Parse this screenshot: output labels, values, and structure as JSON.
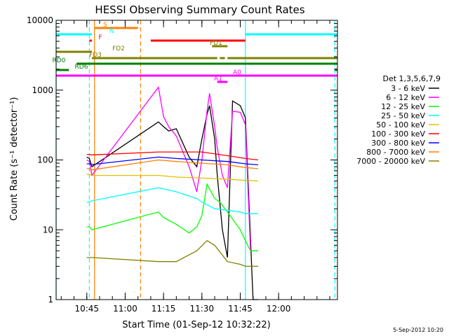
{
  "chart_data": {
    "type": "line",
    "title": "HESSI Observing Summary Count Rates",
    "xlabel": "Start Time (01-Sep-12 10:32:22)",
    "ylabel": "Count Rate (s⁻¹ detector⁻¹)",
    "y_scale": "log",
    "ylim": [
      1,
      10000
    ],
    "xlim_minutes": [
      "10:33",
      "12:23"
    ],
    "x_ticks": [
      "10:45",
      "11:00",
      "11:15",
      "11:30",
      "11:45",
      "12:00"
    ],
    "y_ticks": [
      "1",
      "10",
      "100",
      "1000",
      "10000"
    ],
    "legend_title": "Det 1,3,5,6,7,9",
    "legend_position": "right",
    "series": [
      {
        "name": "3 - 6 keV",
        "color": "#000000",
        "x": [
          "10:45",
          "10:46",
          "10:47",
          "11:13",
          "11:15",
          "11:17",
          "11:20",
          "11:25",
          "11:28",
          "11:30",
          "11:32",
          "11:33",
          "11:35",
          "11:36",
          "11:38",
          "11:40",
          "11:42",
          "11:45",
          "11:47",
          "11:50",
          "11:52"
        ],
        "y": [
          110,
          105,
          80,
          350,
          300,
          260,
          280,
          110,
          80,
          200,
          450,
          600,
          200,
          60,
          10,
          4,
          700,
          600,
          400,
          1,
          1
        ]
      },
      {
        "name": "6 - 12 keV",
        "color": "#ff00ff",
        "x": [
          "10:45",
          "10:46",
          "10:47",
          "11:13",
          "11:15",
          "11:17",
          "11:20",
          "11:25",
          "11:28",
          "11:30",
          "11:32",
          "11:33",
          "11:35",
          "11:36",
          "11:38",
          "11:40",
          "11:42",
          "11:45",
          "11:47",
          "11:49",
          "11:52"
        ],
        "y": [
          100,
          95,
          60,
          1100,
          420,
          300,
          220,
          80,
          35,
          100,
          500,
          900,
          300,
          150,
          60,
          40,
          500,
          480,
          320,
          5,
          5
        ]
      },
      {
        "name": "12 - 25 keV",
        "color": "#00ff00",
        "x": [
          "10:45",
          "10:46",
          "10:47",
          "11:13",
          "11:15",
          "11:20",
          "11:25",
          "11:28",
          "11:30",
          "11:32",
          "11:35",
          "11:37",
          "11:40",
          "11:45",
          "11:47",
          "11:49",
          "11:52"
        ],
        "y": [
          11,
          11,
          10,
          18,
          15,
          12,
          9,
          11,
          16,
          45,
          28,
          25,
          18,
          10,
          7,
          5,
          5
        ]
      },
      {
        "name": "25 - 50 keV",
        "color": "#00ffff",
        "x": [
          "10:45",
          "10:46",
          "10:47",
          "11:13",
          "11:20",
          "11:28",
          "11:30",
          "11:35",
          "11:40",
          "11:45",
          "11:47",
          "11:52"
        ],
        "y": [
          25,
          25,
          26,
          40,
          35,
          28,
          25,
          20,
          19,
          18,
          17,
          17
        ]
      },
      {
        "name": "50 - 100 keV",
        "color": "#e0c000",
        "x": [
          "10:45",
          "10:46",
          "10:47",
          "11:13",
          "11:20",
          "11:30",
          "11:40",
          "11:47",
          "11:52"
        ],
        "y": [
          62,
          62,
          60,
          60,
          57,
          55,
          53,
          51,
          50
        ]
      },
      {
        "name": "100 - 300 keV",
        "color": "#ff0000",
        "x": [
          "10:45",
          "10:46",
          "10:47",
          "11:13",
          "11:20",
          "11:30",
          "11:40",
          "11:47",
          "11:52"
        ],
        "y": [
          120,
          120,
          118,
          130,
          130,
          130,
          115,
          105,
          100
        ]
      },
      {
        "name": "300 - 800 keV",
        "color": "#0000ff",
        "x": [
          "10:45",
          "10:46",
          "10:47",
          "11:13",
          "11:20",
          "11:30",
          "11:40",
          "11:47",
          "11:52"
        ],
        "y": [
          88,
          88,
          86,
          110,
          105,
          100,
          95,
          88,
          85
        ]
      },
      {
        "name": "800 - 7000 keV",
        "color": "#ff8000",
        "x": [
          "10:45",
          "10:46",
          "10:47",
          "11:13",
          "11:20",
          "11:30",
          "11:40",
          "11:47",
          "11:52"
        ],
        "y": [
          75,
          75,
          72,
          100,
          95,
          90,
          85,
          78,
          75
        ]
      },
      {
        "name": "7000 - 20000 keV",
        "color": "#808000",
        "x": [
          "10:45",
          "10:46",
          "10:47",
          "11:13",
          "11:20",
          "11:28",
          "11:32",
          "11:35",
          "11:40",
          "11:45",
          "11:47",
          "11:52"
        ],
        "y": [
          4,
          4,
          4,
          3.5,
          3.5,
          5,
          7,
          6,
          3.5,
          3.2,
          3,
          3
        ]
      }
    ],
    "flag_bars": [
      {
        "label": "S",
        "color": "#ff8000",
        "segments": [
          [
            "10:48",
            "11:05"
          ]
        ]
      },
      {
        "label": "N",
        "color": "#00ffff",
        "segments": [
          [
            "10:33",
            "10:47"
          ],
          [
            "11:47",
            "12:23"
          ]
        ]
      },
      {
        "label": "F",
        "color": "#ff0000",
        "segments": [
          [
            "10:46",
            "10:47"
          ],
          [
            "11:10",
            "11:47"
          ]
        ]
      },
      {
        "label": "FD1",
        "color": "#808000",
        "segments": [
          [
            "11:34",
            "11:40"
          ]
        ]
      },
      {
        "label": "FD2",
        "color": "#808000",
        "segments": [
          [
            "10:33",
            "10:47"
          ]
        ]
      },
      {
        "label": "FD3",
        "color": "#808000",
        "segments": [
          [
            "10:47",
            "11:36"
          ],
          [
            "11:37",
            "11:39"
          ],
          [
            "11:40",
            "12:23"
          ]
        ]
      },
      {
        "label": "RD0",
        "color": "#008000",
        "segments": [
          [
            "10:41",
            "12:23"
          ]
        ]
      },
      {
        "label": "RD6",
        "color": "#008000",
        "segments": [
          [
            "10:33",
            "10:38"
          ],
          [
            "12:22",
            "12:23"
          ]
        ]
      },
      {
        "label": "A0",
        "color": "#ff00ff",
        "segments": [
          [
            "10:33",
            "12:23"
          ]
        ]
      },
      {
        "label": "A1",
        "color": "#ff00ff",
        "segments": [
          [
            "11:36",
            "11:40"
          ]
        ]
      }
    ],
    "vertical_lines": [
      {
        "time": "10:33",
        "color": "#00ffff",
        "style": "solid"
      },
      {
        "time": "10:46",
        "color": "#00ffff",
        "style": "dashed"
      },
      {
        "time": "10:48",
        "color": "#ff8000",
        "style": "solid"
      },
      {
        "time": "11:06",
        "color": "#ff8000",
        "style": "dashed"
      },
      {
        "time": "11:47",
        "color": "#00ffff",
        "style": "solid"
      },
      {
        "time": "12:22",
        "color": "#00ffff",
        "style": "dashed"
      }
    ]
  },
  "footer": {
    "date_stamp": "5-Sep-2012 10:20"
  }
}
